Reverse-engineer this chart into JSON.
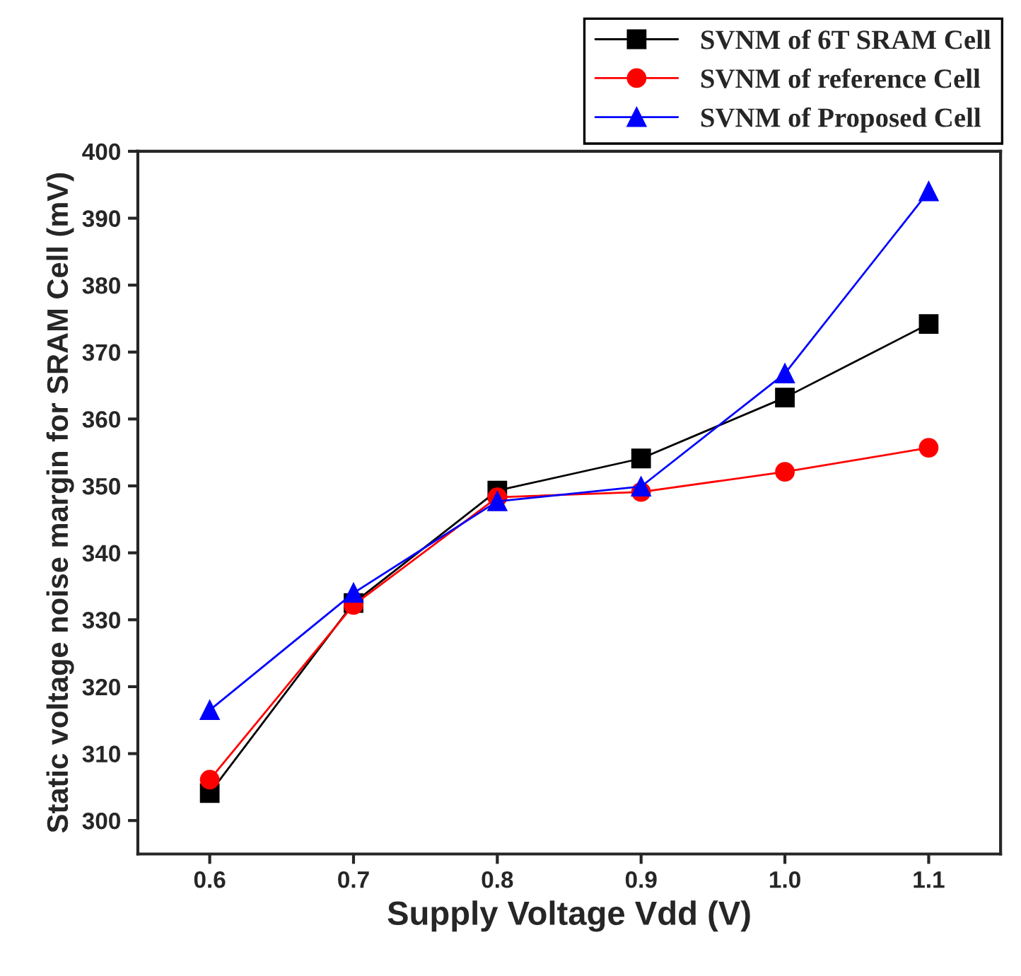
{
  "chart_data": {
    "type": "line",
    "xlabel": "Supply Voltage Vdd (V)",
    "ylabel": "Static voltage noise margin for SRAM Cell (mV)",
    "x": [
      0.6,
      0.7,
      0.8,
      0.9,
      1.0,
      1.1
    ],
    "series": [
      {
        "name": "SVNM of 6T SRAM Cell",
        "color": "#000000",
        "marker": "square",
        "values": [
          304.1,
          332.5,
          349.3,
          354.1,
          363.2,
          374.2
        ]
      },
      {
        "name": "SVNM of reference Cell",
        "color": "#ff0000",
        "marker": "circle",
        "values": [
          306.1,
          332.2,
          348.3,
          349.1,
          352.1,
          355.7
        ]
      },
      {
        "name": "SVNM of Proposed Cell",
        "color": "#0000ff",
        "marker": "triangle",
        "values": [
          316.5,
          334.0,
          347.7,
          349.9,
          366.8,
          394.0
        ]
      }
    ],
    "xlim": [
      0.55,
      1.15
    ],
    "xticks": [
      {
        "value": 0.6,
        "label": "0.6"
      },
      {
        "value": 0.7,
        "label": "0.7"
      },
      {
        "value": 0.8,
        "label": "0.8"
      },
      {
        "value": 0.9,
        "label": "0.9"
      },
      {
        "value": 1.0,
        "label": "1.0"
      },
      {
        "value": 1.1,
        "label": "1.1"
      }
    ],
    "ylim": [
      295,
      400
    ],
    "yticks": [
      300,
      310,
      320,
      330,
      340,
      350,
      360,
      370,
      380,
      390,
      400
    ],
    "grid": false,
    "legend": "top right",
    "line_style": "solid"
  }
}
